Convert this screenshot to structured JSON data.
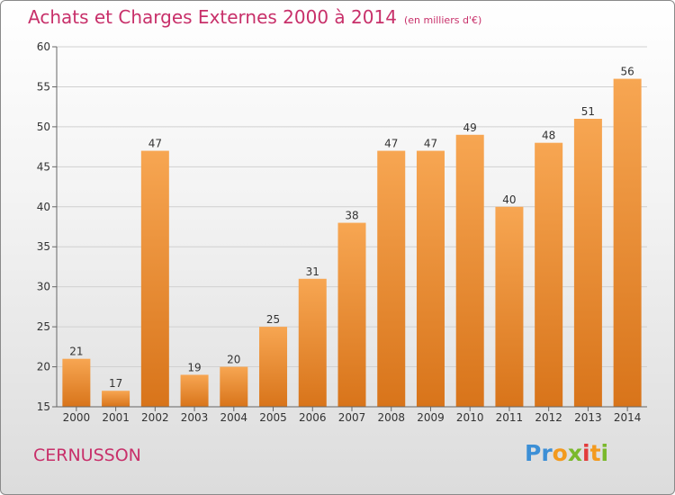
{
  "header": {
    "title": "Achats et Charges Externes 2000 à 2014",
    "unit": "(en milliers d'€)"
  },
  "footer": {
    "commune": "CERNUSSON",
    "logo_letters": [
      "P",
      "r",
      "o",
      "x",
      "i",
      "t",
      "i"
    ]
  },
  "colors": {
    "title": "#c8306a",
    "bar_top": "#f7a652",
    "bar_bottom": "#d8741a",
    "logo_letters": [
      "#3c8fd6",
      "#3c8fd6",
      "#f39a1e",
      "#7ab92c",
      "#e23b3b",
      "#f39a1e",
      "#7ab92c"
    ]
  },
  "chart_data": {
    "type": "bar",
    "categories": [
      "2000",
      "2001",
      "2002",
      "2003",
      "2004",
      "2005",
      "2006",
      "2007",
      "2008",
      "2009",
      "2010",
      "2011",
      "2012",
      "2013",
      "2014"
    ],
    "values": [
      21,
      17,
      47,
      19,
      20,
      25,
      31,
      38,
      47,
      47,
      49,
      40,
      48,
      51,
      56
    ],
    "data_labels": [
      "21",
      "17",
      "47",
      "19",
      "20",
      "25",
      "31",
      "38",
      "47",
      "47",
      "49",
      "40",
      "48",
      "51",
      "56"
    ],
    "title": "Achats et Charges Externes 2000 à 2014",
    "ylim": [
      15,
      60
    ],
    "yticks": [
      "15",
      "20",
      "25",
      "30",
      "35",
      "40",
      "45",
      "50",
      "55",
      "60"
    ],
    "grid": true
  }
}
